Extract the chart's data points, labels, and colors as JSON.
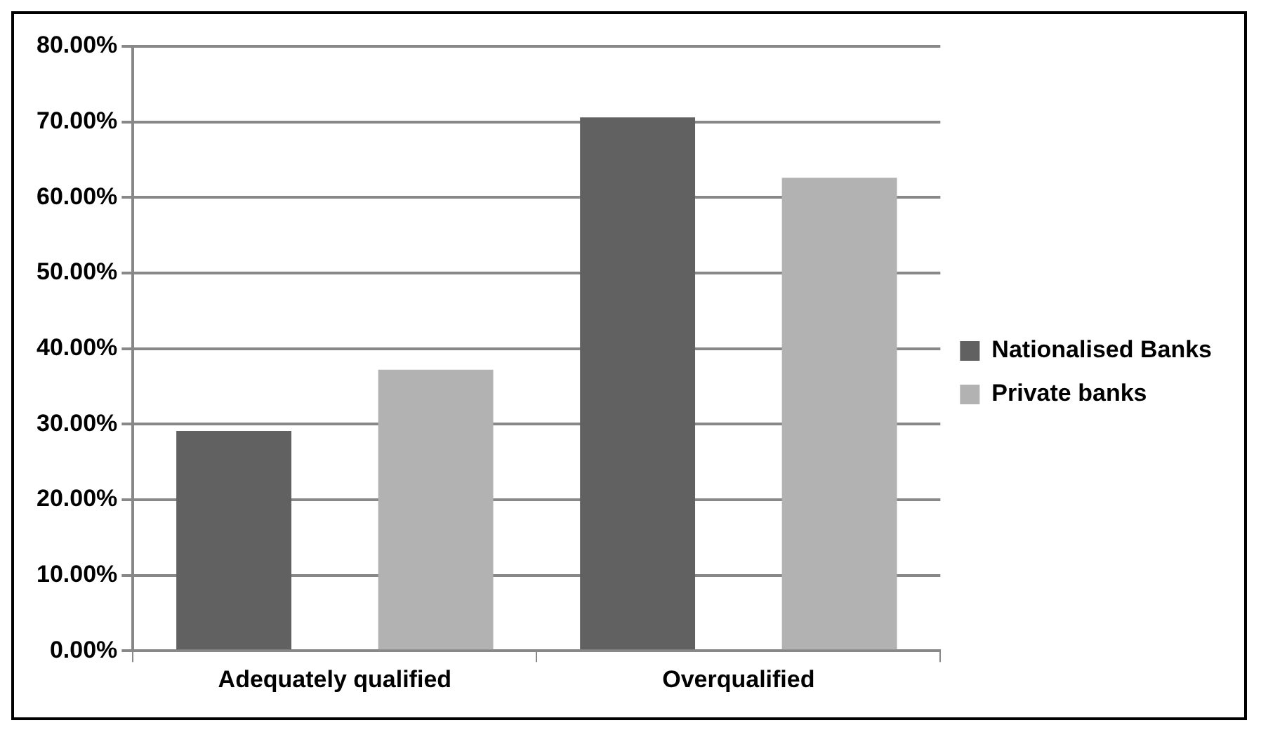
{
  "chart_data": {
    "type": "bar",
    "categories": [
      "Adequately qualified",
      "Overqualified"
    ],
    "series": [
      {
        "name": "Nationalised Banks",
        "color": "#616161",
        "values": [
          29.1,
          70.6
        ]
      },
      {
        "name": "Private banks",
        "color": "#b2b2b2",
        "values": [
          37.2,
          62.6
        ]
      }
    ],
    "ylim": [
      0,
      80
    ],
    "yticks": [
      {
        "value": 0,
        "label": "0.00%"
      },
      {
        "value": 10,
        "label": "10.00%"
      },
      {
        "value": 20,
        "label": "20.00%"
      },
      {
        "value": 30,
        "label": "30.00%"
      },
      {
        "value": 40,
        "label": "40.00%"
      },
      {
        "value": 50,
        "label": "50.00%"
      },
      {
        "value": 60,
        "label": "60.00%"
      },
      {
        "value": 70,
        "label": "70.00%"
      },
      {
        "value": 80,
        "label": "80.00%"
      }
    ],
    "grid": "y",
    "legend": "right"
  }
}
